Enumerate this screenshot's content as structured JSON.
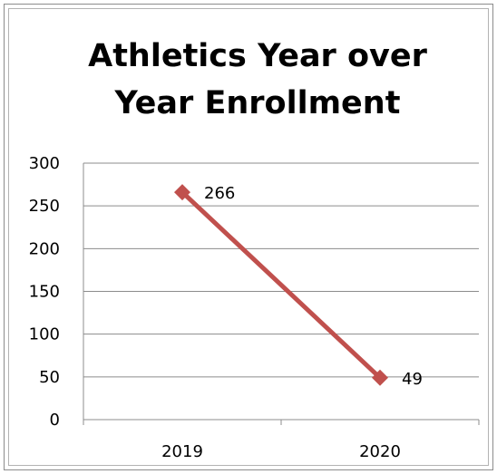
{
  "chart_data": {
    "type": "line",
    "title_lines": [
      "Athletics Year over",
      "Year Enrollment"
    ],
    "categories": [
      "2019",
      "2020"
    ],
    "series": [
      {
        "values": [
          266,
          49
        ],
        "color": "#c0504d"
      }
    ],
    "data_labels": [
      "266",
      "49"
    ],
    "y_ticks": [
      "0",
      "50",
      "100",
      "150",
      "200",
      "250",
      "300"
    ],
    "ylim": [
      0,
      300
    ],
    "grid": true,
    "legend": "none"
  }
}
